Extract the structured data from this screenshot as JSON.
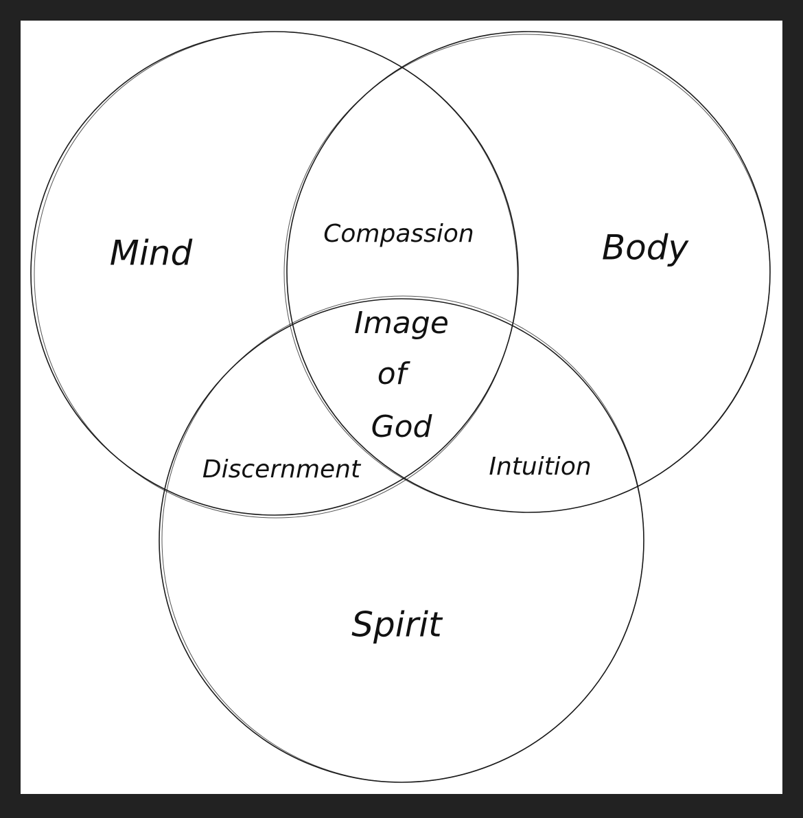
{
  "colors": {
    "frame": "#222222",
    "canvas": "#ffffff",
    "ink": "#1a1a1a"
  },
  "sets": {
    "mind": "Mind",
    "body": "Body",
    "spirit": "Spirit"
  },
  "overlaps": {
    "mind_body": "Compassion",
    "mind_spirit": "Discernment",
    "body_spirit": "Intuition",
    "center": {
      "line1": "Image",
      "line2": "of",
      "line3": "God"
    }
  }
}
